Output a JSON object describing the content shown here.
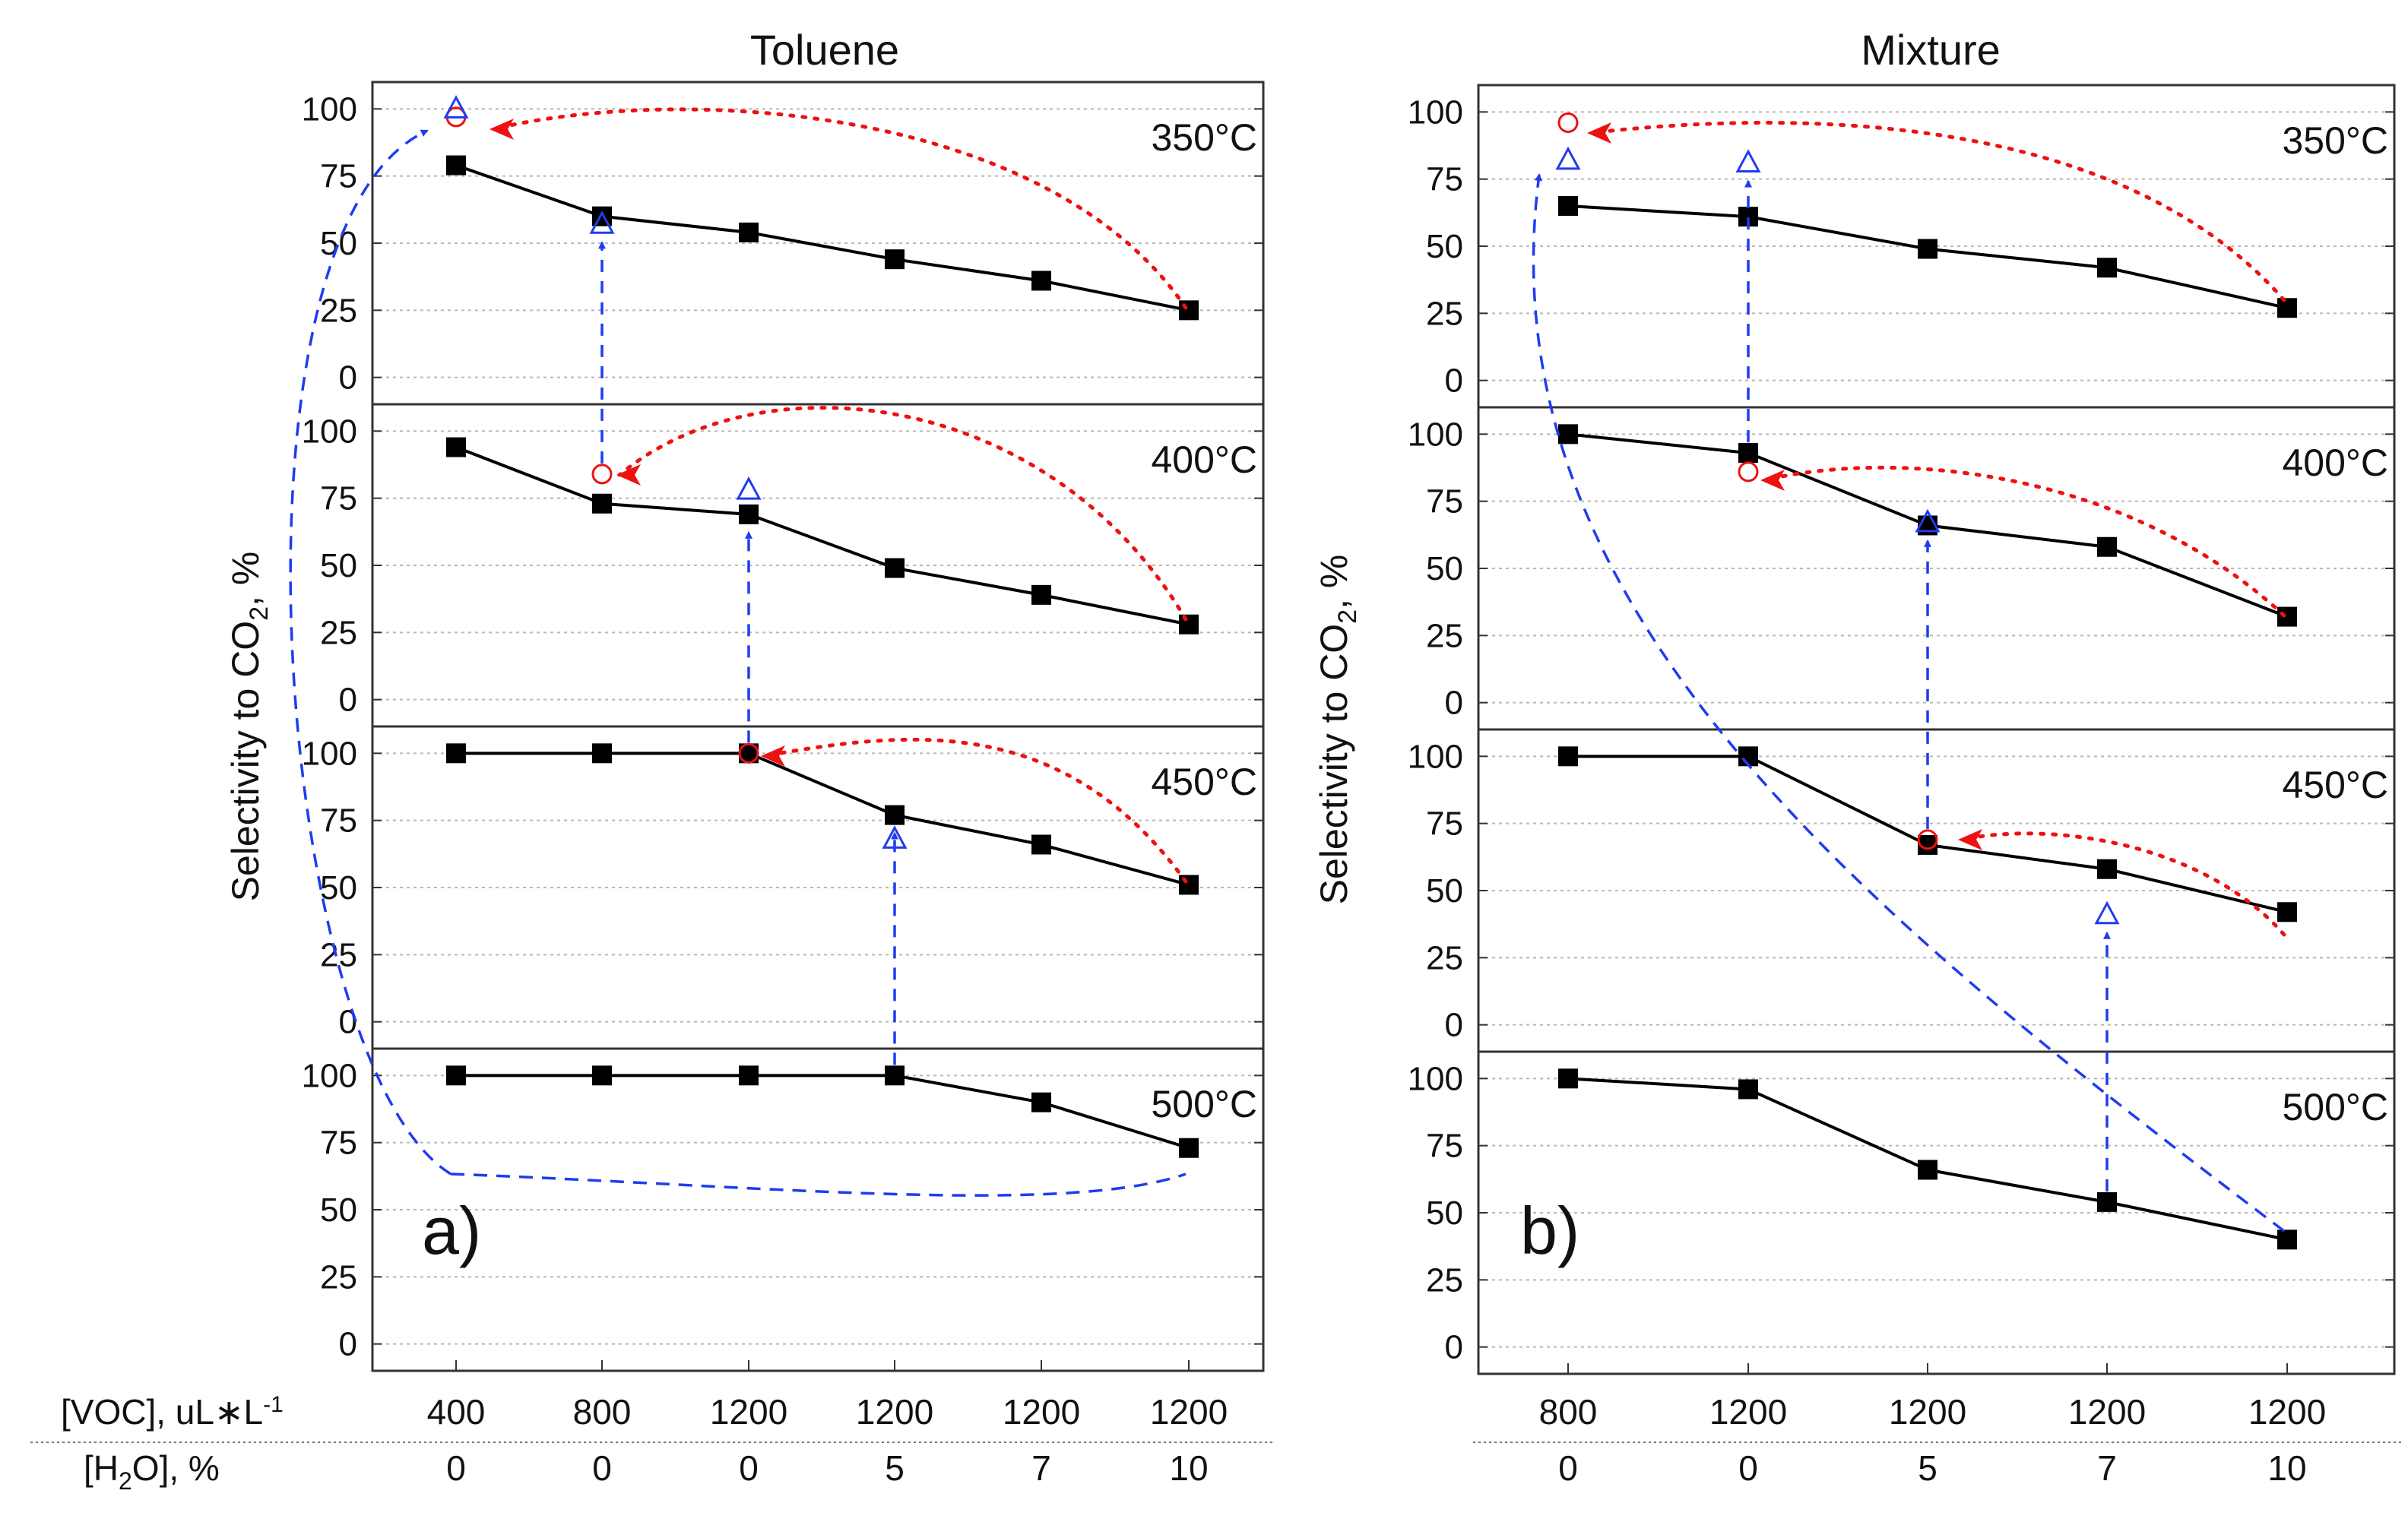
{
  "colors": {
    "line": "#000000",
    "grid": "#b8b8b8",
    "blue": "#1f3cf0",
    "red": "#ee1111",
    "frame": "#333333"
  },
  "row_labels": {
    "voc": "[VOC], uL∗L",
    "voc_sup": "-1",
    "h2o_prefix": "[H",
    "h2o_sub": "2",
    "h2o_suffix": "O], %"
  },
  "chart_data": [
    {
      "type": "line",
      "panel_letter": "a)",
      "title": "Toluene",
      "ylabel": "Selectivity to CO",
      "ylabel_sub": "2",
      "ylabel_suffix": ", %",
      "ylim": [
        -10,
        110
      ],
      "yticks": [
        0,
        25,
        50,
        75,
        100
      ],
      "grid": true,
      "categories_voc": [
        "400",
        "800",
        "1200",
        "1200",
        "1200",
        "1200"
      ],
      "categories_h2o": [
        "0",
        "0",
        "0",
        "5",
        "7",
        "10"
      ],
      "subplots": [
        {
          "temperature": "350°C",
          "values": [
            79,
            60,
            54,
            44,
            36,
            25
          ],
          "open_triangle": [
            {
              "index": 0,
              "value": 100
            },
            {
              "index": 1,
              "value": 57
            }
          ],
          "open_circle": [
            {
              "index": 0,
              "value": 97
            }
          ]
        },
        {
          "temperature": "400°C",
          "values": [
            94,
            73,
            69,
            49,
            39,
            28
          ],
          "open_triangle": [
            {
              "index": 2,
              "value": 78
            }
          ],
          "open_circle": [
            {
              "index": 1,
              "value": 84
            }
          ]
        },
        {
          "temperature": "450°C",
          "values": [
            100,
            100,
            100,
            77,
            66,
            51
          ],
          "open_triangle": [
            {
              "index": 3,
              "value": 68
            }
          ],
          "open_circle": [
            {
              "index": 2,
              "value": 100
            }
          ]
        },
        {
          "temperature": "500°C",
          "values": [
            100,
            100,
            100,
            100,
            90,
            73
          ],
          "open_triangle": [],
          "open_circle": []
        }
      ]
    },
    {
      "type": "line",
      "panel_letter": "b)",
      "title": "Mixture",
      "ylabel": "Selectivity to CO",
      "ylabel_sub": "2",
      "ylabel_suffix": ", %",
      "ylim": [
        -10,
        110
      ],
      "yticks": [
        0,
        25,
        50,
        75,
        100
      ],
      "grid": true,
      "categories_voc": [
        "800",
        "1200",
        "1200",
        "1200",
        "1200"
      ],
      "categories_h2o": [
        "0",
        "0",
        "5",
        "7",
        "10"
      ],
      "subplots": [
        {
          "temperature": "350°C",
          "values": [
            65,
            61,
            49,
            42,
            27
          ],
          "open_triangle": [
            {
              "index": 0,
              "value": 82
            },
            {
              "index": 1,
              "value": 81
            }
          ],
          "open_circle": [
            {
              "index": 0,
              "value": 96
            }
          ]
        },
        {
          "temperature": "400°C",
          "values": [
            100,
            93,
            66,
            58,
            32
          ],
          "open_triangle": [
            {
              "index": 2,
              "value": 67
            }
          ],
          "open_circle": [
            {
              "index": 1,
              "value": 86
            }
          ]
        },
        {
          "temperature": "450°C",
          "values": [
            100,
            100,
            67,
            58,
            42
          ],
          "open_triangle": [
            {
              "index": 3,
              "value": 41
            }
          ],
          "open_circle": [
            {
              "index": 2,
              "value": 69
            }
          ]
        },
        {
          "temperature": "500°C",
          "values": [
            100,
            96,
            66,
            54,
            40
          ],
          "open_triangle": [],
          "open_circle": []
        }
      ]
    }
  ]
}
